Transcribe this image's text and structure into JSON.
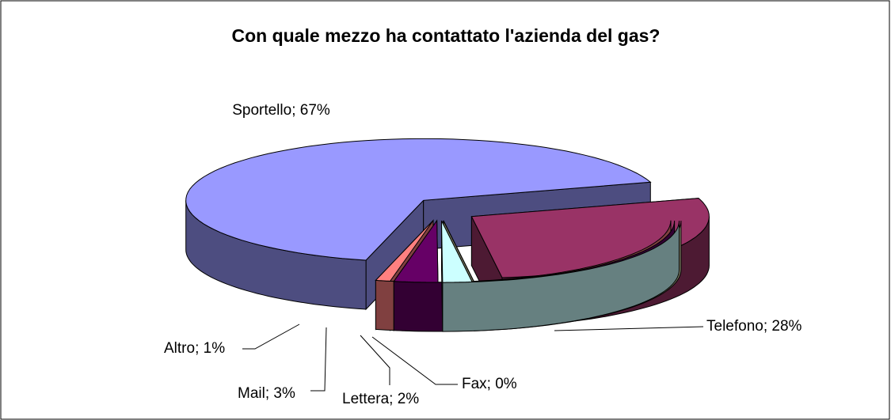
{
  "chart_data": {
    "type": "pie3d",
    "title": "Con quale mezzo ha contattato l'azienda del gas?",
    "values": [
      67,
      28,
      0,
      2,
      3,
      1
    ],
    "value_labels": [
      "Sportello; 67%",
      "Telefono; 28%",
      "Fax; 0%",
      "Lettera; 2%",
      "Mail; 3%",
      "Altro; 1%"
    ],
    "colors": [
      "#9999ff",
      "#993366",
      "#ffffcc",
      "#ccffff",
      "#660066",
      "#ff8080"
    ]
  }
}
